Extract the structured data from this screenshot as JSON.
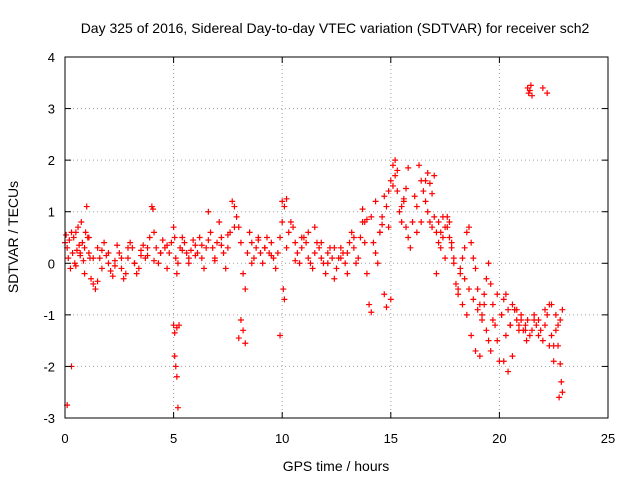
{
  "chart_data": {
    "type": "scatter",
    "title": "Day 325 of 2016, Sidereal Day-to-day VTEC variation (SDTVAR) for receiver sch2",
    "xlabel": "GPS time / hours",
    "ylabel": "SDTVAR / TECUs",
    "xlim": [
      0,
      25
    ],
    "ylim": [
      -3,
      4
    ],
    "xticks": [
      0,
      5,
      10,
      15,
      20,
      25
    ],
    "yticks": [
      -3,
      -2,
      -1,
      0,
      1,
      2,
      3,
      4
    ],
    "xtick_labels": [
      "0",
      "5",
      "10",
      "15",
      "20",
      "25"
    ],
    "ytick_labels": [
      "-3",
      "-2",
      "-1",
      "0",
      "1",
      "2",
      "3",
      "4"
    ],
    "grid": true,
    "marker": "plus",
    "series": [
      {
        "name": "SDTVAR",
        "color": "#ff0000",
        "x": [
          0.0,
          0.05,
          0.1,
          0.15,
          0.2,
          0.25,
          0.3,
          0.35,
          0.4,
          0.45,
          0.5,
          0.55,
          0.6,
          0.65,
          0.7,
          0.75,
          0.8,
          0.85,
          0.9,
          0.95,
          1.0,
          1.05,
          1.1,
          1.15,
          1.2,
          1.3,
          1.4,
          1.5,
          1.6,
          1.7,
          1.8,
          1.9,
          2.0,
          2.1,
          2.2,
          2.3,
          2.4,
          2.5,
          2.6,
          2.7,
          2.8,
          2.9,
          3.0,
          3.1,
          3.2,
          3.3,
          3.4,
          3.5,
          3.6,
          3.7,
          3.8,
          3.9,
          4.0,
          4.05,
          4.1,
          4.2,
          4.3,
          4.4,
          4.5,
          4.6,
          4.7,
          4.8,
          4.9,
          5.0,
          5.05,
          5.1,
          5.15,
          5.2,
          5.3,
          5.4,
          5.5,
          5.6,
          5.7,
          5.8,
          5.9,
          6.0,
          6.1,
          6.2,
          6.3,
          6.4,
          6.5,
          6.6,
          6.7,
          6.8,
          6.9,
          7.0,
          7.1,
          7.2,
          7.3,
          7.4,
          7.5,
          7.6,
          7.7,
          7.8,
          7.9,
          8.0,
          8.1,
          8.2,
          8.3,
          8.4,
          8.5,
          8.6,
          8.7,
          8.8,
          8.9,
          9.0,
          9.1,
          9.2,
          9.3,
          9.4,
          9.5,
          9.6,
          9.7,
          9.8,
          9.9,
          10.0,
          10.05,
          10.1,
          10.2,
          10.3,
          10.4,
          10.5,
          10.6,
          10.7,
          10.8,
          10.9,
          11.0,
          11.1,
          11.2,
          11.3,
          11.4,
          11.5,
          11.6,
          11.7,
          11.8,
          11.9,
          12.0,
          12.1,
          12.2,
          12.3,
          12.4,
          12.5,
          12.6,
          12.7,
          12.8,
          12.9,
          13.0,
          13.1,
          13.2,
          13.3,
          13.4,
          13.5,
          13.6,
          13.7,
          13.8,
          13.9,
          14.0,
          14.1,
          14.2,
          14.3,
          14.4,
          14.5,
          14.6,
          14.7,
          14.8,
          14.9,
          15.0,
          15.1,
          15.2,
          15.3,
          15.4,
          15.5,
          15.6,
          15.7,
          15.8,
          15.9,
          16.0,
          16.1,
          16.2,
          16.3,
          16.4,
          16.5,
          16.6,
          16.7,
          16.8,
          16.9,
          17.0,
          17.1,
          17.2,
          17.3,
          17.4,
          17.5,
          17.6,
          17.7,
          17.8,
          17.9,
          18.0,
          18.1,
          18.2,
          18.3,
          18.4,
          18.5,
          18.6,
          18.7,
          18.8,
          18.9,
          19.0,
          19.1,
          19.2,
          19.3,
          19.4,
          19.5,
          19.6,
          19.7,
          19.8,
          19.9,
          20.0,
          20.1,
          20.2,
          20.3,
          20.4,
          20.5,
          20.6,
          20.7,
          20.8,
          20.9,
          21.0,
          21.1,
          21.2,
          21.3,
          21.4,
          21.5,
          21.6,
          21.7,
          21.8,
          21.9,
          22.0,
          22.1,
          22.2,
          22.3,
          22.4,
          22.5,
          22.6,
          22.7,
          22.8,
          22.9,
          5.0,
          5.05,
          5.1,
          5.15,
          5.2,
          5.25,
          5.05,
          5.15,
          8.0,
          8.1,
          8.2,
          8.3,
          9.9,
          10.0,
          10.1,
          10.2,
          13.7,
          13.8,
          13.9,
          14.5,
          14.6,
          14.7,
          14.8,
          15.0,
          15.1,
          15.2,
          15.6,
          15.7,
          15.8,
          16.6,
          16.7,
          16.8,
          16.9,
          17.0,
          17.2,
          17.3,
          17.4,
          17.6,
          17.7,
          17.8,
          17.9,
          18.2,
          18.4,
          18.6,
          18.8,
          19.0,
          19.2,
          19.4,
          19.5,
          19.6,
          20.2,
          20.4,
          20.6,
          20.8,
          21.0,
          21.2,
          21.25,
          21.3,
          21.35,
          21.4,
          21.45,
          21.5,
          22.0,
          22.2,
          22.4,
          22.6,
          22.7,
          22.8,
          22.85,
          22.9,
          22.75,
          0.1,
          0.3,
          0.5,
          0.7,
          0.9,
          1.1,
          1.3,
          1.5,
          1.7,
          2.0,
          2.3,
          2.6,
          2.9,
          3.2,
          3.5,
          3.8,
          4.1,
          4.4,
          4.7,
          5.4,
          5.7,
          6.0,
          6.3,
          6.6,
          6.9,
          7.2,
          7.5,
          7.8,
          8.6,
          8.9,
          9.2,
          9.5,
          10.6,
          10.9,
          11.2,
          11.5,
          11.8,
          12.1,
          12.4,
          12.7,
          13.0,
          13.3,
          14.1,
          14.3,
          14.9,
          15.3,
          15.5,
          16.2,
          16.4,
          17.1,
          17.5,
          18.1,
          18.3,
          18.5,
          18.7,
          18.9,
          19.1,
          19.3,
          19.7,
          19.9,
          20.1,
          20.3,
          20.5,
          20.7,
          20.9,
          21.6,
          21.8,
          22.1,
          22.3,
          22.5
        ],
        "y": [
          0.4,
          0.55,
          0.3,
          0.1,
          0.45,
          -0.1,
          0.6,
          0.2,
          0.5,
          0.0,
          -0.05,
          0.25,
          0.7,
          0.35,
          0.15,
          0.8,
          0.4,
          0.05,
          0.3,
          0.6,
          1.1,
          0.5,
          0.2,
          0.1,
          -0.3,
          -0.4,
          -0.5,
          -0.35,
          0.1,
          0.25,
          0.4,
          0.15,
          0.0,
          -0.15,
          -0.25,
          0.05,
          0.35,
          0.2,
          -0.1,
          -0.3,
          -0.2,
          0.1,
          0.4,
          0.3,
          0.0,
          -0.2,
          -0.1,
          0.15,
          0.35,
          0.1,
          0.3,
          0.5,
          1.1,
          1.05,
          0.6,
          0.3,
          0.0,
          0.2,
          0.45,
          0.3,
          -0.1,
          0.2,
          0.4,
          0.7,
          0.5,
          0.1,
          -0.2,
          0.0,
          0.3,
          0.5,
          0.4,
          0.2,
          0.0,
          0.25,
          0.45,
          0.35,
          0.2,
          0.5,
          0.1,
          -0.1,
          0.3,
          1.0,
          0.6,
          0.3,
          0.1,
          0.4,
          0.8,
          0.5,
          0.2,
          -0.1,
          0.3,
          0.6,
          1.2,
          1.1,
          0.9,
          0.7,
          0.4,
          -0.2,
          -0.5,
          0.2,
          0.6,
          0.4,
          0.1,
          0.3,
          0.5,
          0.2,
          0.0,
          0.3,
          0.5,
          0.2,
          0.4,
          0.1,
          -0.1,
          0.2,
          0.5,
          0.8,
          -0.5,
          -0.7,
          0.3,
          0.6,
          0.8,
          0.7,
          0.4,
          0.2,
          0.0,
          0.3,
          0.5,
          0.4,
          0.1,
          0.0,
          -0.1,
          0.2,
          0.4,
          0.3,
          0.1,
          0.0,
          -0.2,
          0.0,
          0.3,
          0.1,
          -0.3,
          -0.1,
          0.1,
          0.3,
          0.2,
          0.0,
          -0.2,
          0.4,
          0.6,
          0.3,
          0.0,
          0.1,
          0.5,
          0.8,
          0.4,
          -0.2,
          -0.8,
          -0.95,
          0.4,
          0.2,
          0.0,
          0.6,
          0.9,
          1.3,
          1.1,
          0.7,
          1.6,
          1.9,
          2.0,
          1.4,
          1.0,
          0.8,
          1.2,
          0.7,
          0.5,
          0.3,
          0.8,
          1.3,
          1.1,
          1.9,
          1.6,
          1.4,
          1.2,
          1.0,
          0.8,
          0.7,
          0.9,
          0.6,
          0.4,
          0.3,
          0.5,
          0.7,
          0.9,
          0.8,
          0.4,
          0.0,
          -0.4,
          -0.6,
          -0.2,
          0.1,
          0.3,
          0.6,
          0.7,
          0.4,
          0.1,
          -0.1,
          -0.5,
          -0.8,
          -1.0,
          -0.6,
          -0.3,
          0.0,
          -0.4,
          -0.8,
          -1.2,
          -1.5,
          -1.9,
          -1.0,
          -0.7,
          -0.6,
          -0.9,
          -1.2,
          -0.8,
          -0.9,
          -1.1,
          -1.2,
          -1.0,
          -1.3,
          -1.2,
          -1.1,
          -1.4,
          -1.3,
          -1.0,
          -1.2,
          -1.1,
          -1.3,
          -1.5,
          -1.2,
          -1.0,
          -0.8,
          -1.4,
          -1.6,
          -1.3,
          -1.2,
          -1.1,
          -0.9,
          -1.2,
          -1.8,
          -2.0,
          -2.2,
          -2.8,
          -1.2,
          -1.35,
          -1.25,
          -1.45,
          -1.1,
          -1.3,
          -1.55,
          -1.4,
          1.2,
          1.1,
          1.25,
          1.05,
          0.8,
          0.85,
          0.6,
          0.75,
          -0.6,
          -0.85,
          -0.7,
          1.5,
          1.7,
          1.25,
          1.45,
          1.85,
          1.6,
          1.75,
          1.55,
          1.35,
          1.7,
          0.8,
          0.6,
          0.9,
          0.7,
          0.5,
          0.3,
          0.1,
          -0.1,
          -0.3,
          -0.5,
          -0.7,
          -0.9,
          -1.1,
          -1.3,
          -1.5,
          -1.7,
          -1.9,
          -2.1,
          -1.8,
          -0.9,
          -1.1,
          -1.3,
          -1.5,
          3.4,
          3.3,
          3.35,
          3.45,
          3.25,
          3.4,
          3.3,
          -0.8,
          -1.0,
          -1.6,
          -1.95,
          -2.3,
          -2.5,
          -2.6,
          -2.75,
          -2.0,
          0.6,
          0.2,
          -0.2,
          0.5,
          0.1,
          0.3,
          -0.1,
          0.2,
          -0.05,
          0.1,
          0.3,
          0.0,
          0.25,
          0.15,
          0.05,
          0.2,
          0.35,
          0.25,
          0.1,
          0.15,
          0.35,
          0.45,
          0.05,
          0.35,
          0.55,
          0.7,
          0.0,
          0.45,
          0.3,
          0.15,
          0.05,
          0.5,
          0.6,
          0.7,
          0.4,
          0.2,
          0.3,
          0.1,
          0.2,
          0.5,
          0.9,
          1.2,
          1.4,
          1.8,
          1.1,
          0.6,
          0.8,
          -0.2,
          0.1,
          -0.5,
          -0.8,
          -1.0,
          -1.4,
          -1.7,
          -1.8,
          -0.8,
          -1.1,
          -0.6,
          -1.0,
          -1.4,
          -1.2,
          -0.9,
          -1.3,
          -1.1,
          -1.4,
          -0.9,
          -1.6,
          -1.9
        ]
      }
    ]
  }
}
